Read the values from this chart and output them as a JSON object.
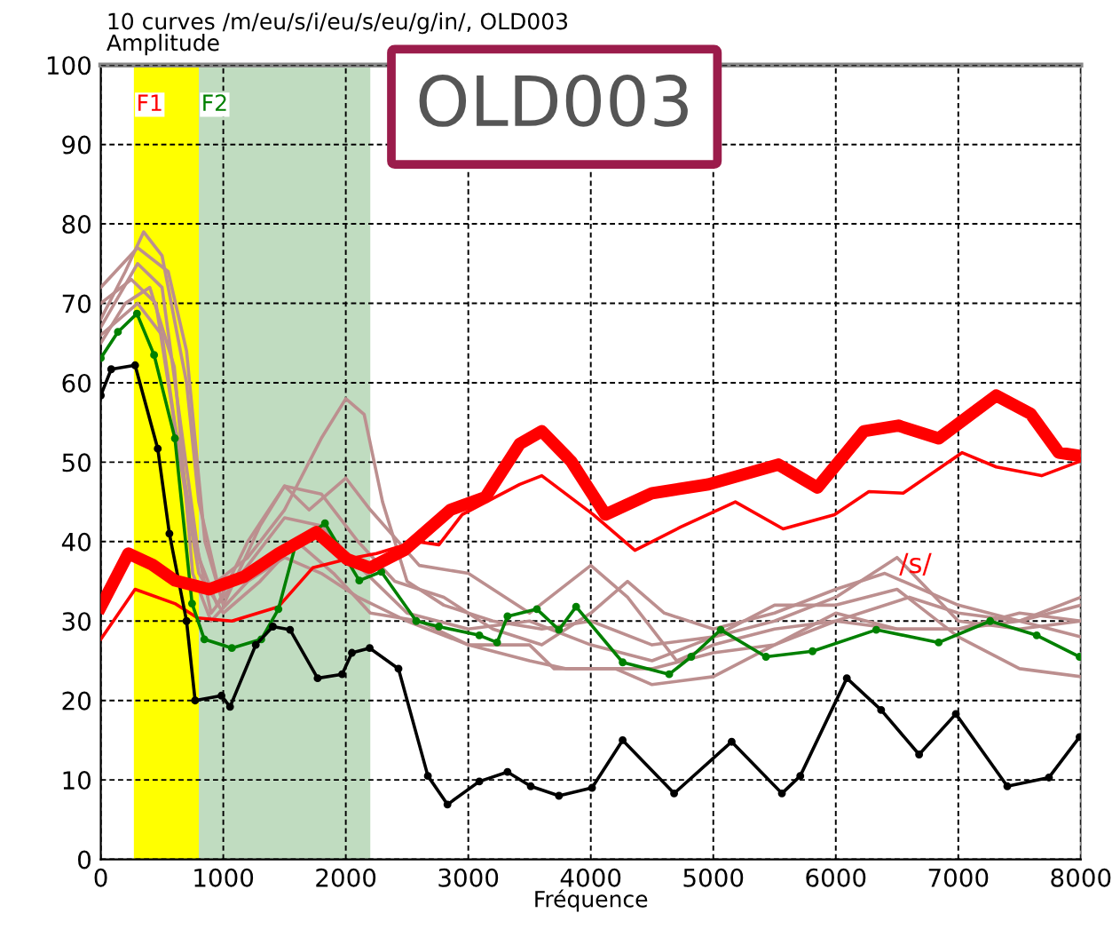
{
  "chart_data": {
    "type": "line",
    "title": "10 curves /m/eu/s/i/eu/s/eu/g/in/, OLD003",
    "ylabel": "Amplitude",
    "xlabel": "Fréquence",
    "xlim": [
      0,
      8000
    ],
    "xticks": [
      0,
      1000,
      2000,
      3000,
      4000,
      5000,
      6000,
      7000,
      8000
    ],
    "ylim": [
      0,
      100
    ],
    "yticks": [
      0,
      10,
      20,
      30,
      40,
      50,
      60,
      70,
      80,
      90,
      100
    ],
    "grid": true,
    "line_style": "solid",
    "annotations": [
      "OLD003",
      {
        "text": "/s/",
        "x": 6650,
        "y": 37
      }
    ],
    "bands": [
      {
        "axis": "x",
        "from": 270,
        "to": 800,
        "label": "F1",
        "color": "#ffff00"
      },
      {
        "axis": "x",
        "from": 800,
        "to": 2200,
        "label": "F2",
        "color": "#c0dcc0"
      }
    ],
    "series": [
      {
        "color": "#bc8f8f",
        "marker": "none",
        "x": [
          0,
          200,
          350,
          500,
          700,
          800,
          950,
          1200,
          1500,
          1800,
          2000,
          2150,
          2300,
          2500,
          2800,
          3200,
          3600,
          4000,
          4500,
          5000,
          5500,
          6000,
          6500,
          7000,
          7500,
          8000
        ],
        "values": [
          68,
          74,
          79,
          76,
          60,
          45,
          35,
          38,
          44,
          53,
          58,
          56,
          45,
          35,
          32,
          30,
          29,
          30,
          27,
          28,
          30,
          33,
          38,
          30,
          29,
          30
        ]
      },
      {
        "color": "#bc8f8f",
        "marker": "none",
        "x": [
          0,
          300,
          550,
          700,
          850,
          1000,
          1300,
          1500,
          1800,
          2100,
          2400,
          2800,
          3200,
          3600,
          4000,
          4300,
          4600,
          5000,
          5500,
          6000,
          6400,
          7000,
          7500,
          8000
        ],
        "values": [
          72,
          77,
          74,
          64,
          40,
          32,
          42,
          47,
          46,
          40,
          35,
          33,
          29,
          27,
          31,
          35,
          31,
          29,
          31,
          34,
          36,
          32,
          30,
          33
        ]
      },
      {
        "color": "#bc8f8f",
        "marker": "none",
        "x": [
          0,
          300,
          500,
          650,
          800,
          950,
          1200,
          1500,
          1700,
          2000,
          2200,
          2600,
          3000,
          3500,
          4000,
          4300,
          4700,
          5000,
          5500,
          6000,
          6600,
          7000,
          7500,
          8000
        ],
        "values": [
          67,
          75,
          72,
          55,
          38,
          32,
          40,
          47,
          44,
          48,
          44,
          37,
          36,
          31,
          37,
          33,
          25,
          27,
          29,
          30,
          33,
          31,
          30,
          28
        ]
      },
      {
        "color": "#bc8f8f",
        "marker": "none",
        "x": [
          0,
          250,
          450,
          600,
          750,
          900,
          1200,
          1500,
          1800,
          2100,
          2500,
          3000,
          3500,
          4000,
          4500,
          5000,
          5500,
          6000,
          6500,
          7000,
          7500,
          8000
        ],
        "values": [
          70,
          73,
          70,
          55,
          42,
          31,
          37,
          43,
          42,
          37,
          31,
          29,
          30,
          27,
          25,
          28,
          32,
          32,
          34,
          28,
          24,
          23
        ]
      },
      {
        "color": "#bc8f8f",
        "marker": "none",
        "x": [
          0,
          200,
          400,
          600,
          750,
          900,
          1200,
          1500,
          1800,
          2100,
          2500,
          3000,
          3500,
          3800,
          4200,
          4500,
          5000,
          5500,
          6000,
          6500,
          7000,
          7500,
          8000
        ],
        "values": [
          65,
          70,
          72,
          62,
          36,
          30,
          35,
          38,
          36,
          33,
          30,
          27,
          25,
          24,
          24,
          22,
          23,
          27,
          30,
          29,
          29,
          30,
          32
        ]
      },
      {
        "color": "#bc8f8f",
        "marker": "none",
        "x": [
          0,
          300,
          500,
          650,
          800,
          1000,
          1300,
          1600,
          1900,
          2200,
          2600,
          3000,
          3500,
          3700,
          4000,
          4500,
          5000,
          5500,
          6000,
          6500,
          7000,
          7500,
          8000
        ],
        "values": [
          66,
          70,
          66,
          50,
          36,
          31,
          35,
          40,
          36,
          31,
          30,
          27,
          27,
          24,
          24,
          24,
          26,
          27,
          31,
          29,
          29,
          31,
          30
        ]
      },
      {
        "color": "#ff0000",
        "marker": "none",
        "x": [
          0,
          280,
          605,
          790,
          1070,
          1450,
          1730,
          2010,
          2250,
          2575,
          2760,
          2950,
          3420,
          3600,
          4020,
          4360,
          4730,
          5180,
          5570,
          5990,
          6270,
          6550,
          7030,
          7310,
          7680,
          7990
        ],
        "values": [
          27.7,
          34,
          32.2,
          30.4,
          30,
          31.8,
          36.7,
          37.8,
          38.5,
          40,
          39.6,
          43.4,
          47.2,
          48.3,
          43.4,
          38.9,
          41.8,
          45,
          41.6,
          43.4,
          46.3,
          46.1,
          51.2,
          49.4,
          48.3,
          50.1
        ]
      },
      {
        "color": "#008000",
        "marker": "circle",
        "x": [
          0,
          140,
          295,
          435,
          605,
          745,
          845,
          1070,
          1310,
          1450,
          1590,
          1830,
          2110,
          2290,
          2575,
          2760,
          3090,
          3235,
          3320,
          3560,
          3740,
          3880,
          4260,
          4640,
          4820,
          5060,
          5430,
          5810,
          6330,
          6840,
          7260,
          7640,
          7990
        ],
        "values": [
          63.1,
          66.4,
          68.7,
          63.5,
          53,
          32.2,
          27.7,
          26.6,
          27.7,
          31.5,
          39.6,
          42.3,
          35.1,
          36.2,
          30,
          29.3,
          28.2,
          27.3,
          30.6,
          31.5,
          28.9,
          31.8,
          24.8,
          23.3,
          25.5,
          28.9,
          25.5,
          26.2,
          28.9,
          27.3,
          30,
          28.2,
          25.5
        ]
      },
      {
        "color": "#000000",
        "marker": "circle",
        "x": [
          0,
          85,
          280,
          465,
          560,
          700,
          770,
          985,
          1055,
          1265,
          1405,
          1545,
          1770,
          1970,
          2050,
          2195,
          2430,
          2670,
          2830,
          3090,
          3320,
          3510,
          3740,
          4010,
          4260,
          4680,
          5150,
          5560,
          5710,
          6090,
          6370,
          6680,
          6980,
          7400,
          7740,
          7990
        ],
        "values": [
          58.4,
          61.7,
          62.2,
          51.7,
          41,
          30,
          20,
          20.6,
          19.2,
          27,
          29.3,
          28.9,
          22.8,
          23.3,
          26,
          26.6,
          24,
          10.5,
          6.9,
          9.8,
          11,
          9.2,
          8,
          9,
          15,
          8.3,
          14.8,
          8.3,
          10.5,
          22.8,
          18.8,
          13.2,
          18.3,
          9.2,
          10.3,
          15.4
        ]
      },
      {
        "color": "#ff0000",
        "marker": "none",
        "x": [
          0,
          225,
          420,
          605,
          885,
          1170,
          1450,
          1760,
          2010,
          2195,
          2475,
          2855,
          3140,
          3420,
          3600,
          3840,
          4120,
          4500,
          4960,
          5530,
          5850,
          6230,
          6510,
          6840,
          7310,
          7590,
          7820,
          7990
        ],
        "values": [
          31.8,
          38.5,
          37.1,
          35.1,
          34,
          35.6,
          38.5,
          41.2,
          37.8,
          36.7,
          38.9,
          44,
          45.6,
          52.3,
          53.9,
          50.1,
          43.4,
          46.1,
          47.2,
          49.7,
          46.8,
          53.9,
          54.6,
          53,
          58.4,
          56.1,
          51.2,
          50.8
        ]
      }
    ]
  }
}
